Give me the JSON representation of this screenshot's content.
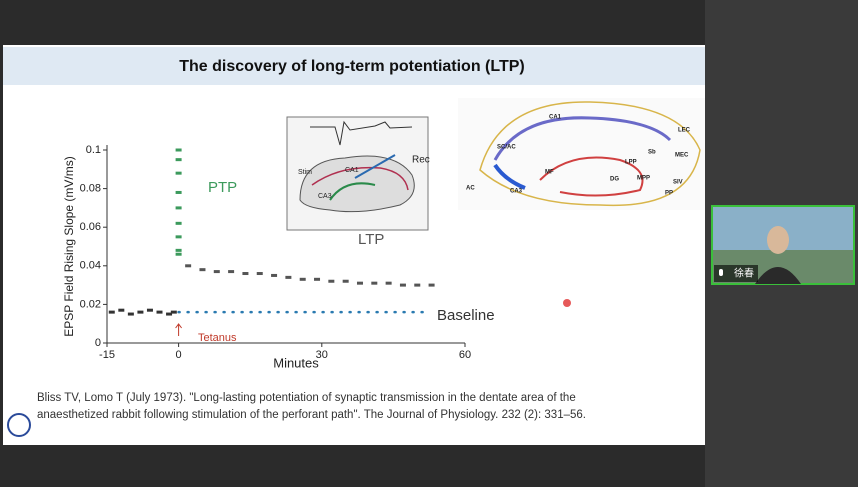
{
  "slide": {
    "title": "The discovery of long-term potentiation (LTP)",
    "chart": {
      "type": "scatter",
      "ylabel": "EPSP Field Rising Slope (mV/ms)",
      "xlabel": "Minutes",
      "xlim": [
        -15,
        60
      ],
      "ylim": [
        0,
        0.1
      ],
      "xticks": [
        -15,
        0,
        30,
        60
      ],
      "yticks": [
        0,
        0.02,
        0.04,
        0.06,
        0.08,
        0.1
      ],
      "series": [
        {
          "color": "#333333",
          "x": [
            -14,
            -12,
            -10,
            -8,
            -6,
            -4,
            -2,
            -1
          ],
          "values": [
            0.016,
            0.017,
            0.015,
            0.016,
            0.017,
            0.016,
            0.015,
            0.016
          ]
        },
        {
          "color": "#3c9a5c",
          "x": [
            0,
            0,
            0,
            0,
            0,
            0,
            0,
            0,
            0
          ],
          "values": [
            0.1,
            0.095,
            0.088,
            0.078,
            0.07,
            0.062,
            0.055,
            0.048,
            0.046
          ]
        },
        {
          "color": "#555555",
          "x": [
            2,
            5,
            8,
            11,
            14,
            17,
            20,
            23,
            26,
            29,
            32,
            35,
            38,
            41,
            44,
            47,
            50,
            53
          ],
          "values": [
            0.04,
            0.038,
            0.037,
            0.037,
            0.036,
            0.036,
            0.035,
            0.034,
            0.033,
            0.033,
            0.032,
            0.032,
            0.031,
            0.031,
            0.031,
            0.03,
            0.03,
            0.03
          ]
        }
      ],
      "baseline": {
        "color": "#2a7ab0",
        "x": [
          0,
          52
        ],
        "values": [
          0.016,
          0.016
        ]
      },
      "annotations": [
        "PTP",
        "LTP",
        "Baseline",
        "Tetanus"
      ]
    },
    "citation": [
      "Bliss TV, Lomo T (July 1973). \"Long-lasting potentiation of synaptic transmission in the dentate area of the",
      "anaesthetized rabbit following stimulation of the perforant path\". The Journal of Physiology. 232 (2): 331–56."
    ],
    "diagram_left": {
      "labels": [
        "Rec",
        "Stim",
        "CA1",
        "CA3"
      ]
    },
    "diagram_right": {
      "labels": [
        "CA1",
        "SC/AC",
        "AC",
        "CA3",
        "MF",
        "DG",
        "LPP",
        "MPP",
        "Sb",
        "LEC",
        "MEC",
        "SIV",
        "PP"
      ]
    }
  },
  "participant": {
    "name": "徐春"
  }
}
